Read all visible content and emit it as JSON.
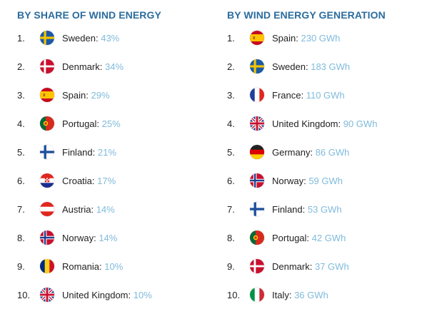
{
  "left": {
    "title": "BY SHARE OF WIND ENERGY",
    "items": [
      {
        "rank": "1.",
        "country": "Sweden",
        "value": "43%",
        "flag": "sweden-flag-icon"
      },
      {
        "rank": "2.",
        "country": "Denmark",
        "value": "34%",
        "flag": "denmark-flag-icon"
      },
      {
        "rank": "3.",
        "country": "Spain",
        "value": "29%",
        "flag": "spain-flag-icon"
      },
      {
        "rank": "4.",
        "country": "Portugal",
        "value": "25%",
        "flag": "portugal-flag-icon"
      },
      {
        "rank": "5.",
        "country": "Finland",
        "value": "21%",
        "flag": "finland-flag-icon"
      },
      {
        "rank": "6.",
        "country": "Croatia",
        "value": "17%",
        "flag": "croatia-flag-icon"
      },
      {
        "rank": "7.",
        "country": "Austria",
        "value": "14%",
        "flag": "austria-flag-icon"
      },
      {
        "rank": "8.",
        "country": "Norway",
        "value": "14%",
        "flag": "norway-flag-icon"
      },
      {
        "rank": "9.",
        "country": "Romania",
        "value": "10%",
        "flag": "romania-flag-icon"
      },
      {
        "rank": "10.",
        "country": "United Kingdom",
        "value": "10%",
        "flag": "uk-flag-icon"
      }
    ]
  },
  "right": {
    "title": "BY WIND ENERGY GENERATION",
    "items": [
      {
        "rank": "1.",
        "country": "Spain",
        "value": "230 GWh",
        "flag": "spain-flag-icon"
      },
      {
        "rank": "2.",
        "country": "Sweden",
        "value": "183 GWh",
        "flag": "sweden-flag-icon"
      },
      {
        "rank": "3.",
        "country": "France",
        "value": "110 GWh",
        "flag": "france-flag-icon"
      },
      {
        "rank": "4.",
        "country": "United Kingdom",
        "value": "90 GWh",
        "flag": "uk-flag-icon"
      },
      {
        "rank": "5.",
        "country": "Germany",
        "value": "86 GWh",
        "flag": "germany-flag-icon"
      },
      {
        "rank": "6.",
        "country": "Norway",
        "value": "59 GWh",
        "flag": "norway-flag-icon"
      },
      {
        "rank": "7.",
        "country": "Finland",
        "value": "53 GWh",
        "flag": "finland-flag-icon"
      },
      {
        "rank": "8.",
        "country": "Portugal",
        "value": "42 GWh",
        "flag": "portugal-flag-icon"
      },
      {
        "rank": "9.",
        "country": "Denmark",
        "value": "37 GWh",
        "flag": "denmark-flag-icon"
      },
      {
        "rank": "10.",
        "country": "Italy",
        "value": "36 GWh",
        "flag": "italy-flag-icon"
      }
    ]
  }
}
